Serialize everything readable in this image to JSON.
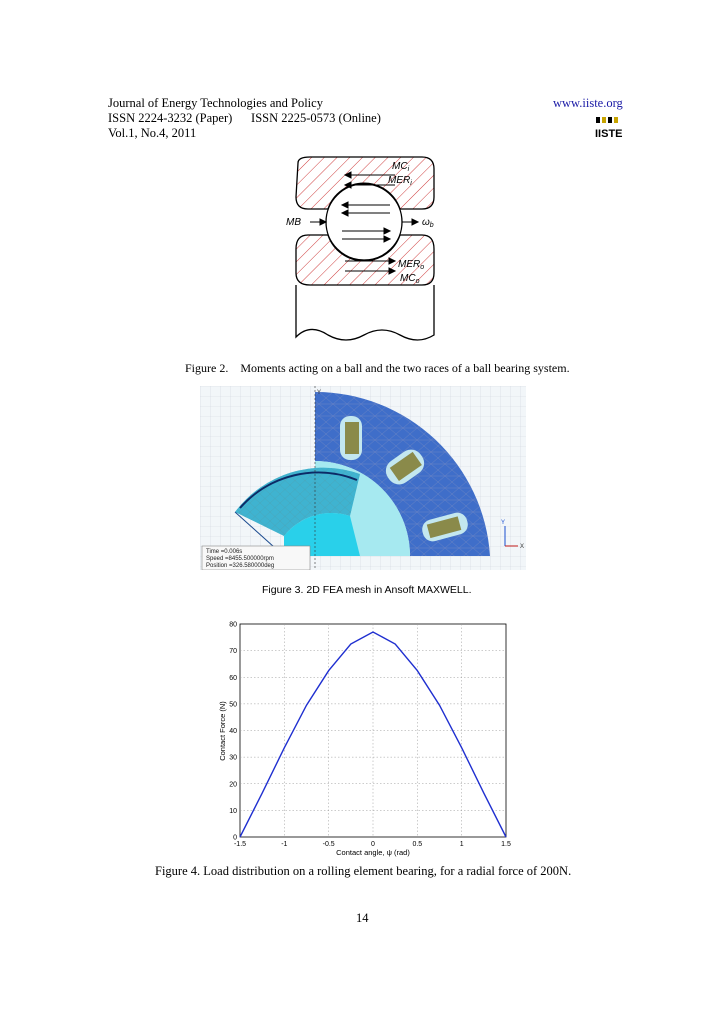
{
  "header": {
    "journal": "Journal of Energy Technologies and Policy",
    "issn": "ISSN 2224-3232 (Paper)      ISSN 2225-0573 (Online)",
    "volume": "Vol.1, No.4, 2011",
    "website": "www.iiste.org",
    "logo_text": "IISTE"
  },
  "figure2": {
    "caption": "Figure 2.    Moments acting on a ball and the two races of a ball bearing system.",
    "labels": {
      "mc_i": "MC",
      "mc_i_sub": "i",
      "mer_i": "MER",
      "mer_i_sub": "i",
      "mb": "MB",
      "omega": "ω",
      "omega_sub": "b",
      "mer_o": "MER",
      "mer_o_sub": "o",
      "mc_o": "MC",
      "mc_o_sub": "o"
    }
  },
  "figure3": {
    "caption": "Figure 3. 2D FEA mesh in Ansoft MAXWELL.",
    "info": {
      "time": "Time    =0.006s",
      "speed": "Speed    =8455.500000rpm",
      "position": "Position =326.580000deg"
    },
    "axis_y": "Y",
    "axis_x": "X"
  },
  "figure4": {
    "caption": "Figure 4. Load distribution on a rolling element bearing, for a radial force of 200N.",
    "chart_data": {
      "type": "line",
      "xlabel": "Contact angle, ψ (rad)",
      "ylabel": "Contact Force (N)",
      "xlim": [
        -1.5,
        1.5
      ],
      "ylim": [
        0,
        80
      ],
      "xticks": [
        "-1.5",
        "-1",
        "-0.5",
        "0",
        "0.5",
        "1",
        "1.5"
      ],
      "yticks": [
        "0",
        "10",
        "20",
        "30",
        "40",
        "50",
        "60",
        "70",
        "80"
      ],
      "grid": true,
      "line_color": "#1f2fd0",
      "series": [
        {
          "x": [
            -1.5,
            -1.25,
            -1.0,
            -0.75,
            -0.5,
            -0.25,
            0.0,
            0.25,
            0.5,
            0.75,
            1.0,
            1.25,
            1.5
          ],
          "y": [
            0,
            16.5,
            33.5,
            49.5,
            62.5,
            72.5,
            77,
            72.5,
            62.5,
            49.5,
            33.5,
            16.5,
            0
          ]
        }
      ]
    }
  },
  "page_number": "14"
}
